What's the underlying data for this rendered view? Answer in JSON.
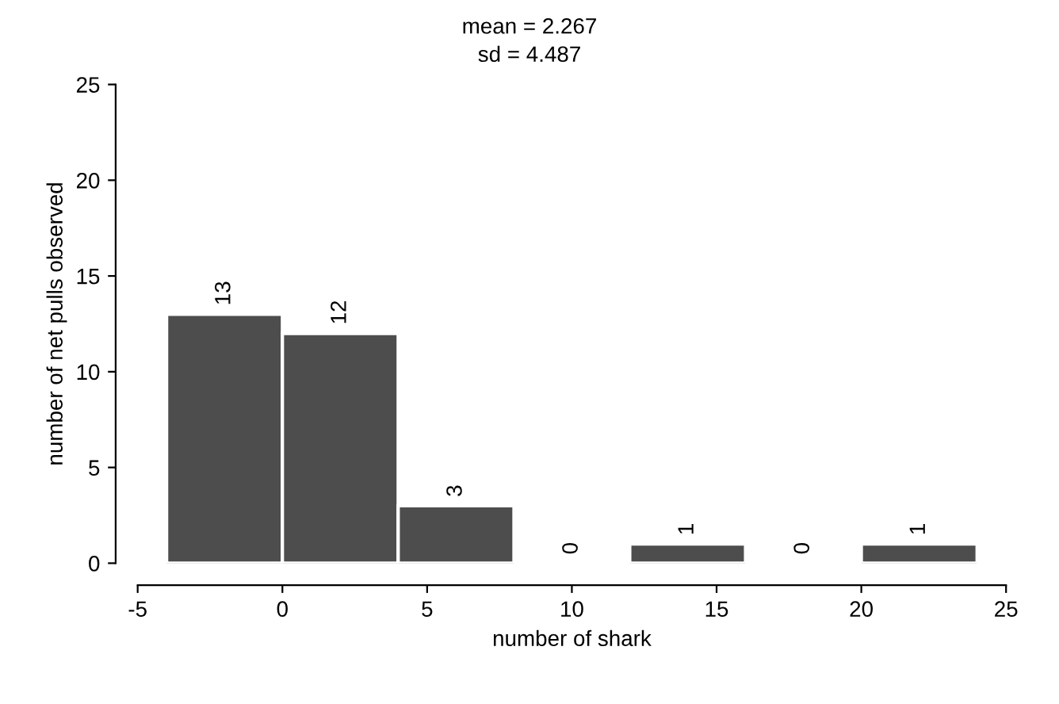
{
  "chart_data": {
    "type": "histogram",
    "title": "mean = 2.267",
    "subtitle": "sd = 4.487",
    "xlabel": "number of shark",
    "ylabel": "number of net pulls observed",
    "bins": [
      -4,
      0,
      4,
      8,
      12,
      16,
      20,
      24
    ],
    "values": [
      13,
      12,
      3,
      0,
      1,
      0,
      1
    ],
    "color": "#4d4d4d",
    "xlim": [
      -5,
      25
    ],
    "xticks": [
      -5,
      0,
      5,
      10,
      15,
      20,
      25
    ],
    "ylim": [
      0,
      25
    ],
    "yticks": [
      0,
      5,
      10,
      15,
      20,
      25
    ],
    "data_labels": true,
    "grid": false
  }
}
